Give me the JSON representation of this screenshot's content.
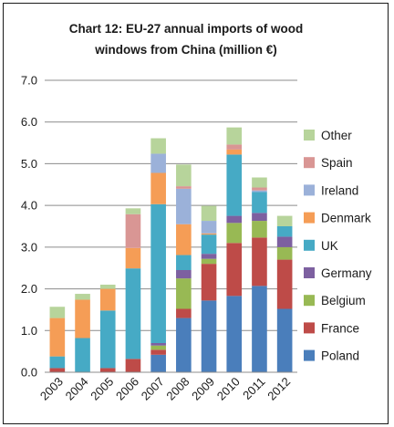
{
  "chart_data": {
    "type": "bar",
    "stacked": true,
    "title_lines": [
      "Chart 12: EU-27 annual imports of  wood",
      "windows from China (million €)"
    ],
    "categories": [
      "2003",
      "2004",
      "2005",
      "2006",
      "2007",
      "2008",
      "2009",
      "2010",
      "2011",
      "2012"
    ],
    "ylim": [
      0,
      7.0
    ],
    "yticks": [
      "0.0",
      "1.0",
      "2.0",
      "3.0",
      "4.0",
      "5.0",
      "6.0",
      "7.0"
    ],
    "grid": true,
    "legend_position": "right",
    "series": [
      {
        "name": "Poland",
        "color": "#4a7ebb",
        "values": [
          0.0,
          0.0,
          0.0,
          0.0,
          0.42,
          1.3,
          1.72,
          1.83,
          2.07,
          1.52
        ]
      },
      {
        "name": "France",
        "color": "#be4b48",
        "values": [
          0.1,
          0.0,
          0.1,
          0.32,
          0.12,
          0.22,
          0.88,
          1.27,
          1.16,
          1.18
        ]
      },
      {
        "name": "Belgium",
        "color": "#98b954",
        "values": [
          0.0,
          0.0,
          0.0,
          0.0,
          0.1,
          0.73,
          0.12,
          0.48,
          0.4,
          0.3
        ]
      },
      {
        "name": "Germany",
        "color": "#7d60a0",
        "values": [
          0.0,
          0.0,
          0.0,
          0.0,
          0.06,
          0.2,
          0.12,
          0.17,
          0.19,
          0.25
        ]
      },
      {
        "name": "UK",
        "color": "#46aac5",
        "values": [
          0.28,
          0.82,
          1.38,
          2.17,
          3.33,
          0.36,
          0.46,
          1.47,
          0.5,
          0.25
        ]
      },
      {
        "name": "Denmark",
        "color": "#f59d56",
        "values": [
          0.92,
          0.92,
          0.52,
          0.49,
          0.75,
          0.74,
          0.03,
          0.12,
          0.0,
          0.0
        ]
      },
      {
        "name": "Ireland",
        "color": "#9bb1d9",
        "values": [
          0.0,
          0.0,
          0.0,
          0.0,
          0.46,
          0.85,
          0.3,
          0.0,
          0.04,
          0.0
        ]
      },
      {
        "name": "Spain",
        "color": "#d99694",
        "values": [
          0.0,
          0.0,
          0.0,
          0.81,
          0.0,
          0.06,
          0.0,
          0.12,
          0.07,
          0.0
        ]
      },
      {
        "name": "Other",
        "color": "#b7d49b",
        "values": [
          0.27,
          0.14,
          0.1,
          0.14,
          0.37,
          0.52,
          0.36,
          0.41,
          0.24,
          0.25
        ]
      }
    ]
  }
}
